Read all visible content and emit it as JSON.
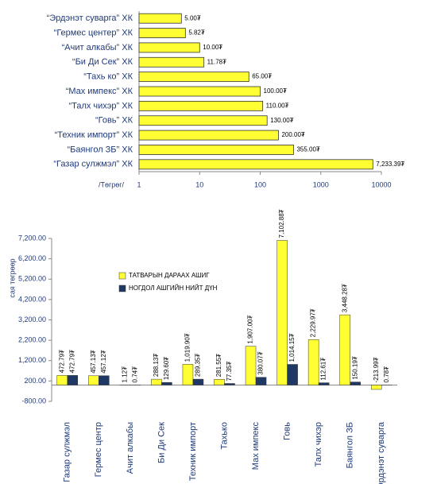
{
  "chart_data": [
    {
      "type": "bar",
      "orientation": "horizontal",
      "log_scale": true,
      "x_label": "/Төгрөг/",
      "color": "#ffff33",
      "categories": [
        "“Эрдэнэт суварга” ХК",
        "“Гермес центер” ХК",
        "“Ачит алкабы” ХК",
        "“Би Ди Сек” ХК",
        "“Тахь ко” ХК",
        "“Мах импекс” ХК",
        "“Талх чихэр” ХК",
        "“Говь” ХК",
        "“Техник импорт” ХК",
        "“Баянгол ЗБ” ХК",
        "“Газар сулжмэл” ХК"
      ],
      "values": [
        5.0,
        5.82,
        10.0,
        11.78,
        65.0,
        100.0,
        110.0,
        130.0,
        200.0,
        355.0,
        7233.39
      ],
      "value_labels": [
        "5.00₮",
        "5.82₮",
        "10.00₮",
        "11.78₮",
        "65.00₮",
        "100.00₮",
        "110.00₮",
        "130.00₮",
        "200.00₮",
        "355.00₮",
        "7,233.39₮"
      ],
      "xlim": [
        1,
        10000
      ],
      "xticks": [
        1,
        10,
        100,
        1000,
        10000
      ]
    },
    {
      "type": "bar",
      "orientation": "vertical",
      "y_label": "сая төгрөөр",
      "categories": [
        "Газар сулжмэл",
        "Гермес центр",
        "Ачит алкабы",
        "Би Ди Сек",
        "Техник импорт",
        "Тахько",
        "Мах импекс",
        "Говь",
        "Талх чихэр",
        "Баянгол ЗБ",
        "Эрдэнэт суварга"
      ],
      "series": [
        {
          "name": "ТАТВАРЫН ДАРААХ АШИГ",
          "color": "#ffff33",
          "values": [
            472.79,
            457.13,
            1.12,
            288.13,
            1019.9,
            281.55,
            1907.0,
            7102.88,
            2229.97,
            3448.28,
            -213.99
          ],
          "value_labels": [
            "472.79₮",
            "457.13₮",
            "1.12₮",
            "288.13₮",
            "1,019.90₮",
            "281.55₮",
            "1,907.00₮",
            "7,102.88₮",
            "2,229.97₮",
            "3,448.28₮",
            "-213.99₮"
          ]
        },
        {
          "name": "НОГДОЛ АШГИЙН НИЙТ ДҮН",
          "color": "#1f3864",
          "values": [
            472.79,
            457.12,
            0.74,
            129.6,
            289.35,
            77.35,
            380.07,
            1014.15,
            112.61,
            150.19,
            0.78
          ],
          "value_labels": [
            "472.79₮",
            "457.12₮",
            "0.74₮",
            "129.60₮",
            "289.35₮",
            "77.35₮",
            "380.07₮",
            "1,014.15₮",
            "112.61₮",
            "150.19₮",
            "0.78₮"
          ]
        }
      ],
      "ylim": [
        -800,
        7200
      ],
      "yticks": [
        {
          "value": -800,
          "label": "-800.00"
        },
        {
          "value": 200,
          "label": "200.00"
        },
        {
          "value": 1200,
          "label": "1,200.00"
        },
        {
          "value": 2200,
          "label": "2,200.00"
        },
        {
          "value": 3200,
          "label": "3,200.00"
        },
        {
          "value": 4200,
          "label": "4,200.00"
        },
        {
          "value": 5200,
          "label": "5,200.00"
        },
        {
          "value": 6200,
          "label": "6,200.00"
        },
        {
          "value": 7200,
          "label": "7,200.00"
        }
      ]
    }
  ]
}
